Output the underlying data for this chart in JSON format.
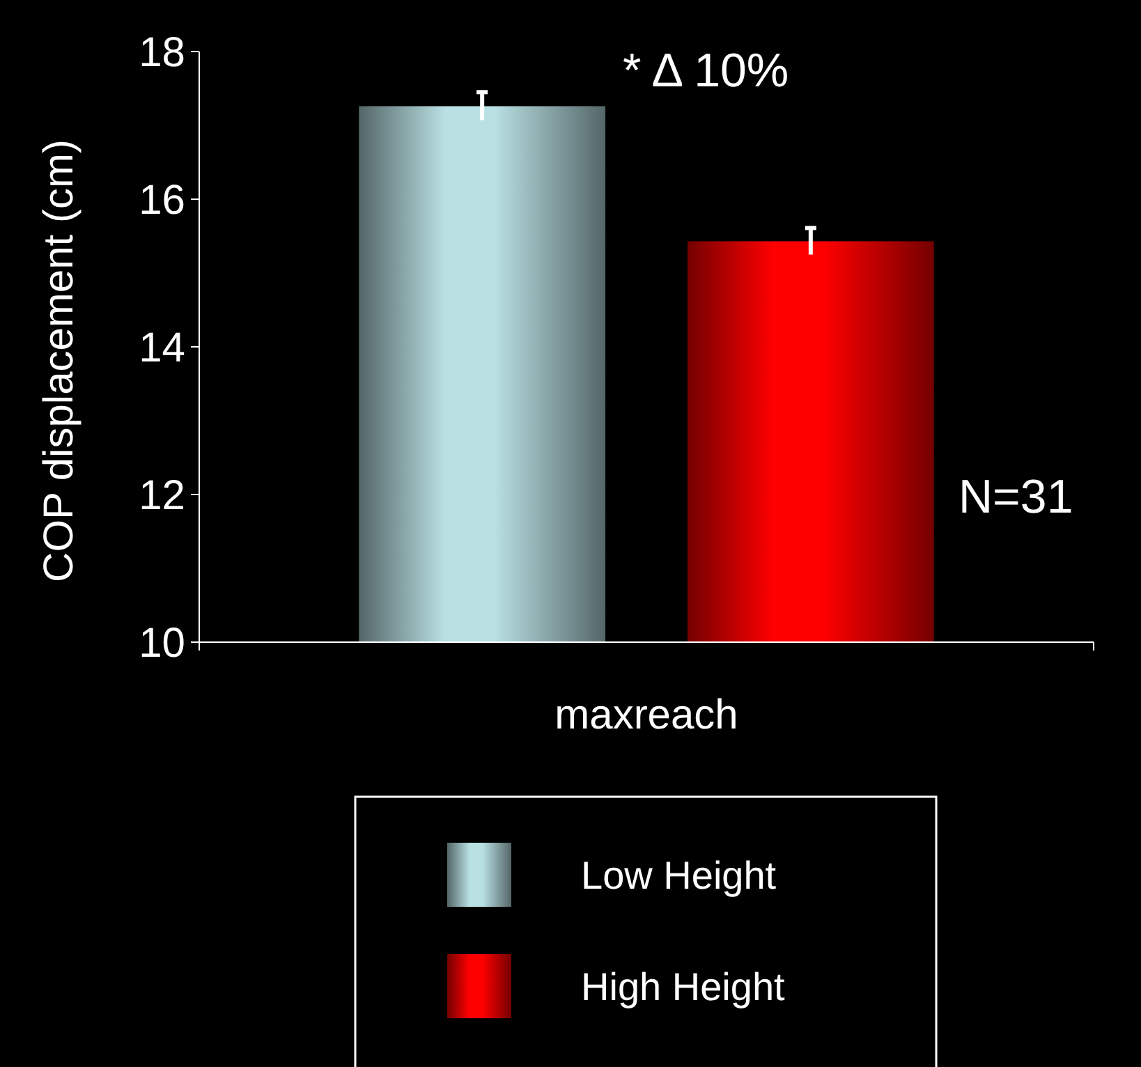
{
  "chart_data": {
    "type": "bar",
    "ylabel": "COP displacement (cm)",
    "categories": [
      "maxreach"
    ],
    "series": [
      {
        "name": "Low Height",
        "color": "#b9e0e3",
        "values": [
          17.26
        ],
        "errors": [
          0.19
        ]
      },
      {
        "name": "High Height",
        "color": "#ff0000",
        "values": [
          15.43
        ],
        "errors": [
          0.18
        ]
      }
    ],
    "ylim": [
      10,
      18
    ],
    "yticks": [
      10,
      12,
      14,
      16,
      18
    ],
    "grid": false,
    "legend": "bottom",
    "annotations": [
      "* Δ 10%",
      "N=31"
    ]
  }
}
